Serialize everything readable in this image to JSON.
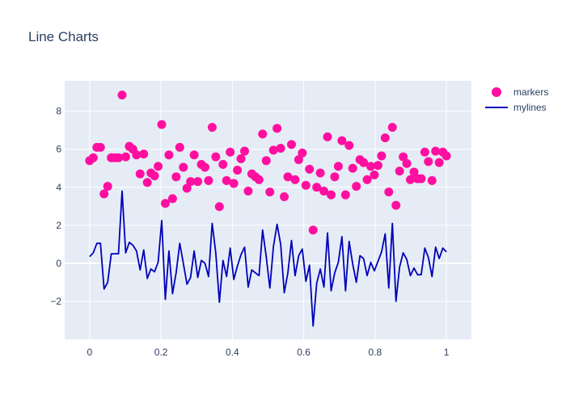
{
  "chart_data": {
    "type": "scatter",
    "title": "Line Charts",
    "xlabel": "",
    "ylabel": "",
    "xlim": [
      -0.07,
      1.07
    ],
    "ylim": [
      -4.0,
      9.6
    ],
    "x_ticks": [
      0,
      0.2,
      0.4,
      0.6,
      0.8,
      1
    ],
    "x_tick_labels": [
      "0",
      "0.2",
      "0.4",
      "0.6",
      "0.8",
      "1"
    ],
    "y_ticks": [
      -2,
      0,
      2,
      4,
      6,
      8
    ],
    "y_tick_labels": [
      "−2",
      "0",
      "2",
      "4",
      "6",
      "8"
    ],
    "grid": true,
    "legend_position": "top-right",
    "colors": {
      "plot_background": "#e5ecf6",
      "grid": "#ffffff",
      "title": "#2a3f5f",
      "tick_text": "#2a3f5f"
    },
    "series": [
      {
        "name": "markers",
        "mode": "markers",
        "color": "#ff0f9f",
        "x": [
          0.0,
          0.0101,
          0.0202,
          0.0303,
          0.0404,
          0.0505,
          0.0606,
          0.0707,
          0.0808,
          0.0909,
          0.101,
          0.1111,
          0.1212,
          0.1313,
          0.1414,
          0.1515,
          0.1616,
          0.1717,
          0.1818,
          0.1919,
          0.202,
          0.2121,
          0.2222,
          0.2323,
          0.2424,
          0.2525,
          0.2626,
          0.2727,
          0.2828,
          0.2929,
          0.303,
          0.3131,
          0.3232,
          0.3333,
          0.3434,
          0.3535,
          0.3636,
          0.3737,
          0.3838,
          0.3939,
          0.404,
          0.4141,
          0.4242,
          0.4343,
          0.4444,
          0.4545,
          0.4646,
          0.4747,
          0.4848,
          0.4949,
          0.5051,
          0.5152,
          0.5253,
          0.5354,
          0.5455,
          0.5556,
          0.5657,
          0.5758,
          0.5859,
          0.596,
          0.6061,
          0.6162,
          0.6263,
          0.6364,
          0.6465,
          0.6566,
          0.6667,
          0.6768,
          0.6869,
          0.697,
          0.7071,
          0.7172,
          0.7273,
          0.7374,
          0.7475,
          0.7576,
          0.7677,
          0.7778,
          0.7879,
          0.798,
          0.8081,
          0.8182,
          0.8283,
          0.8384,
          0.8485,
          0.8586,
          0.8687,
          0.8788,
          0.8889,
          0.899,
          0.9091,
          0.9192,
          0.9293,
          0.9394,
          0.9495,
          0.9596,
          0.9697,
          0.9798,
          0.9899,
          1.0
        ],
        "y": [
          5.4,
          5.55,
          6.1,
          6.1,
          3.65,
          4.05,
          5.55,
          5.55,
          5.55,
          8.85,
          5.6,
          6.15,
          6.0,
          5.7,
          4.7,
          5.75,
          4.25,
          4.75,
          4.6,
          5.1,
          7.3,
          3.15,
          5.7,
          3.4,
          4.55,
          6.1,
          5.05,
          3.95,
          4.3,
          5.7,
          4.3,
          5.2,
          5.05,
          4.35,
          7.15,
          5.6,
          2.98,
          5.2,
          4.35,
          5.85,
          4.2,
          4.9,
          5.5,
          5.9,
          3.8,
          4.7,
          4.55,
          4.4,
          6.8,
          5.4,
          3.75,
          5.95,
          7.1,
          6.05,
          3.5,
          4.55,
          6.25,
          4.4,
          5.45,
          5.8,
          4.1,
          4.95,
          1.75,
          4.0,
          4.75,
          3.8,
          6.65,
          3.6,
          4.55,
          5.1,
          6.45,
          3.6,
          6.2,
          5.0,
          4.05,
          5.45,
          5.3,
          4.4,
          5.1,
          4.65,
          5.15,
          5.65,
          6.6,
          3.75,
          7.15,
          3.05,
          4.85,
          5.6,
          5.25,
          4.4,
          4.8,
          4.45,
          4.45,
          5.85,
          5.35,
          4.35,
          5.9,
          5.3,
          5.85,
          5.65
        ]
      },
      {
        "name": "mylines",
        "mode": "lines",
        "color": "#0000b8",
        "x": [
          0.0,
          0.0101,
          0.0202,
          0.0303,
          0.0404,
          0.0505,
          0.0606,
          0.0707,
          0.0808,
          0.0909,
          0.101,
          0.1111,
          0.1212,
          0.1313,
          0.1414,
          0.1515,
          0.1616,
          0.1717,
          0.1818,
          0.1919,
          0.202,
          0.2121,
          0.2222,
          0.2323,
          0.2424,
          0.2525,
          0.2626,
          0.2727,
          0.2828,
          0.2929,
          0.303,
          0.3131,
          0.3232,
          0.3333,
          0.3434,
          0.3535,
          0.3636,
          0.3737,
          0.3838,
          0.3939,
          0.404,
          0.4141,
          0.4242,
          0.4343,
          0.4444,
          0.4545,
          0.4646,
          0.4747,
          0.4848,
          0.4949,
          0.5051,
          0.5152,
          0.5253,
          0.5354,
          0.5455,
          0.5556,
          0.5657,
          0.5758,
          0.5859,
          0.596,
          0.6061,
          0.6162,
          0.6263,
          0.6364,
          0.6465,
          0.6566,
          0.6667,
          0.6768,
          0.6869,
          0.697,
          0.7071,
          0.7172,
          0.7273,
          0.7374,
          0.7475,
          0.7576,
          0.7677,
          0.7778,
          0.7879,
          0.798,
          0.8081,
          0.8182,
          0.8283,
          0.8384,
          0.8485,
          0.8586,
          0.8687,
          0.8788,
          0.8889,
          0.899,
          0.9091,
          0.9192,
          0.9293,
          0.9394,
          0.9495,
          0.9596,
          0.9697,
          0.9798,
          0.9899,
          1.0
        ],
        "y": [
          0.35,
          0.55,
          1.05,
          1.05,
          -1.35,
          -1.0,
          0.5,
          0.5,
          0.5,
          3.8,
          0.55,
          1.1,
          0.95,
          0.65,
          -0.35,
          0.7,
          -0.8,
          -0.3,
          -0.45,
          0.05,
          2.25,
          -1.9,
          0.65,
          -1.6,
          -0.5,
          1.05,
          0.0,
          -1.1,
          -0.75,
          0.65,
          -0.75,
          0.15,
          0.0,
          -0.7,
          2.1,
          0.55,
          -2.05,
          0.15,
          -0.7,
          0.8,
          -0.85,
          -0.15,
          0.45,
          0.85,
          -1.25,
          -0.35,
          -0.5,
          -0.65,
          1.75,
          0.35,
          -1.3,
          0.9,
          2.05,
          1.0,
          -1.55,
          -0.5,
          1.2,
          -0.65,
          0.4,
          0.75,
          -0.95,
          -0.1,
          -3.3,
          -1.05,
          -0.3,
          -1.25,
          1.6,
          -1.45,
          -0.5,
          0.05,
          1.4,
          -1.45,
          1.15,
          -0.05,
          -1.0,
          0.4,
          0.25,
          -0.65,
          0.05,
          -0.4,
          0.1,
          0.6,
          1.55,
          -1.3,
          2.1,
          -2.0,
          -0.2,
          0.55,
          0.2,
          -0.65,
          -0.25,
          -0.6,
          -0.6,
          0.8,
          0.3,
          -0.7,
          0.85,
          0.25,
          0.8,
          0.6
        ]
      }
    ]
  }
}
